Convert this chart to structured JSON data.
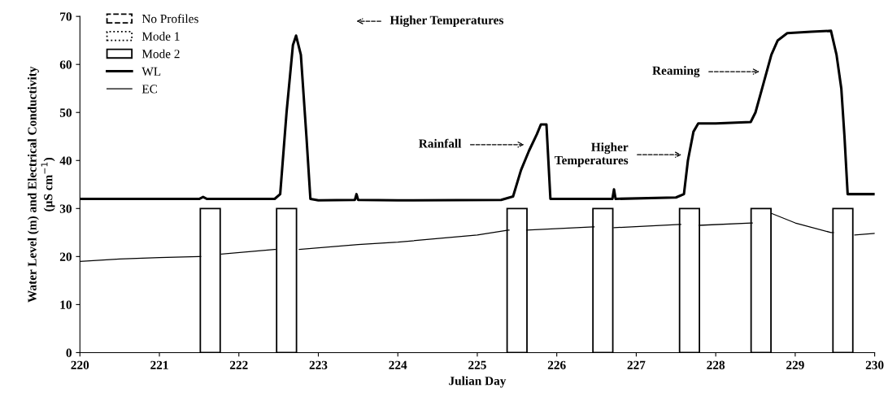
{
  "chart_data": {
    "type": "line",
    "xlabel": "Julian Day",
    "ylabel": "Water Level (m) and Electrical Conductivity\n(µS cm$^{−1}$)",
    "xlim": [
      220,
      230
    ],
    "xticks": [
      220,
      221,
      222,
      223,
      224,
      225,
      226,
      227,
      228,
      229,
      230
    ],
    "ylim": [
      0,
      70
    ],
    "yticks": [
      0,
      10,
      20,
      30,
      40,
      50,
      60,
      70
    ],
    "grid": false,
    "legend": "top left",
    "marker": "none",
    "series": [
      {
        "name": "No Profiles",
        "type": "bar",
        "line_style": "dashed",
        "color": "#000000"
      },
      {
        "name": "Mode 1",
        "type": "bar",
        "line_style": "dotted",
        "color": "#000000"
      },
      {
        "name": "Mode 2",
        "type": "bar",
        "line_style": "solid",
        "color": "#000000",
        "x": [
          221.64,
          222.6,
          225.5,
          226.58,
          227.67,
          228.57,
          229.6
        ],
        "values": [
          30,
          30,
          30,
          30,
          30,
          30,
          30
        ]
      },
      {
        "name": "WL",
        "line_style": "solid",
        "color": "#000000",
        "x": [
          220,
          221.5,
          221.55,
          221.6,
          222.45,
          222.52,
          222.6,
          222.68,
          222.72,
          222.78,
          222.85,
          222.9,
          223,
          223.46,
          223.48,
          223.5,
          224,
          225.3,
          225.45,
          225.55,
          225.65,
          225.75,
          225.8,
          225.87,
          225.92,
          226.5,
          226.7,
          226.72,
          226.74,
          227.5,
          227.6,
          227.65,
          227.72,
          227.78,
          228,
          228.44,
          228.5,
          228.6,
          228.7,
          228.78,
          228.9,
          229.2,
          229.45,
          229.52,
          229.58,
          229.62,
          229.66,
          229.75,
          230
        ],
        "values": [
          32,
          32,
          32.4,
          32,
          32,
          33,
          50,
          64,
          66,
          62,
          45,
          32,
          31.7,
          31.8,
          33,
          31.8,
          31.7,
          31.8,
          32.5,
          38,
          42,
          45.5,
          47.5,
          47.5,
          32,
          32,
          32,
          34,
          32,
          32.3,
          33,
          40,
          46,
          47.7,
          47.7,
          48,
          50,
          56,
          62,
          65,
          66.5,
          66.8,
          67,
          62,
          55,
          45,
          33,
          33,
          33
        ]
      },
      {
        "name": "EC",
        "line_style": "solid",
        "color": "#000000",
        "x": [
          220,
          220.5,
          221,
          221.5,
          221.52,
          221.76,
          221.78,
          222.45,
          222.46,
          222.74,
          222.76,
          223.5,
          224,
          225,
          225.39,
          225.4,
          225.61,
          225.62,
          226.46,
          226.47,
          226.71,
          226.72,
          227.55,
          227.56,
          227.78,
          227.79,
          228.45,
          228.46,
          228.69,
          228.7,
          229,
          229.45,
          229.48,
          229.74,
          229.75,
          230
        ],
        "values": [
          19,
          19.5,
          19.8,
          20,
          20,
          null,
          20.5,
          21.5,
          21.5,
          null,
          21.5,
          22.5,
          23,
          24.5,
          25.5,
          25.5,
          null,
          25.5,
          26.2,
          26.2,
          null,
          26,
          26.7,
          26.7,
          null,
          26.5,
          27,
          27,
          null,
          29,
          27,
          25,
          25,
          null,
          24.5,
          24.8
        ]
      }
    ],
    "annotations": [
      "Higher Temperatures",
      "Rainfall",
      "Higher\nTemperatures",
      "Reaming"
    ]
  }
}
